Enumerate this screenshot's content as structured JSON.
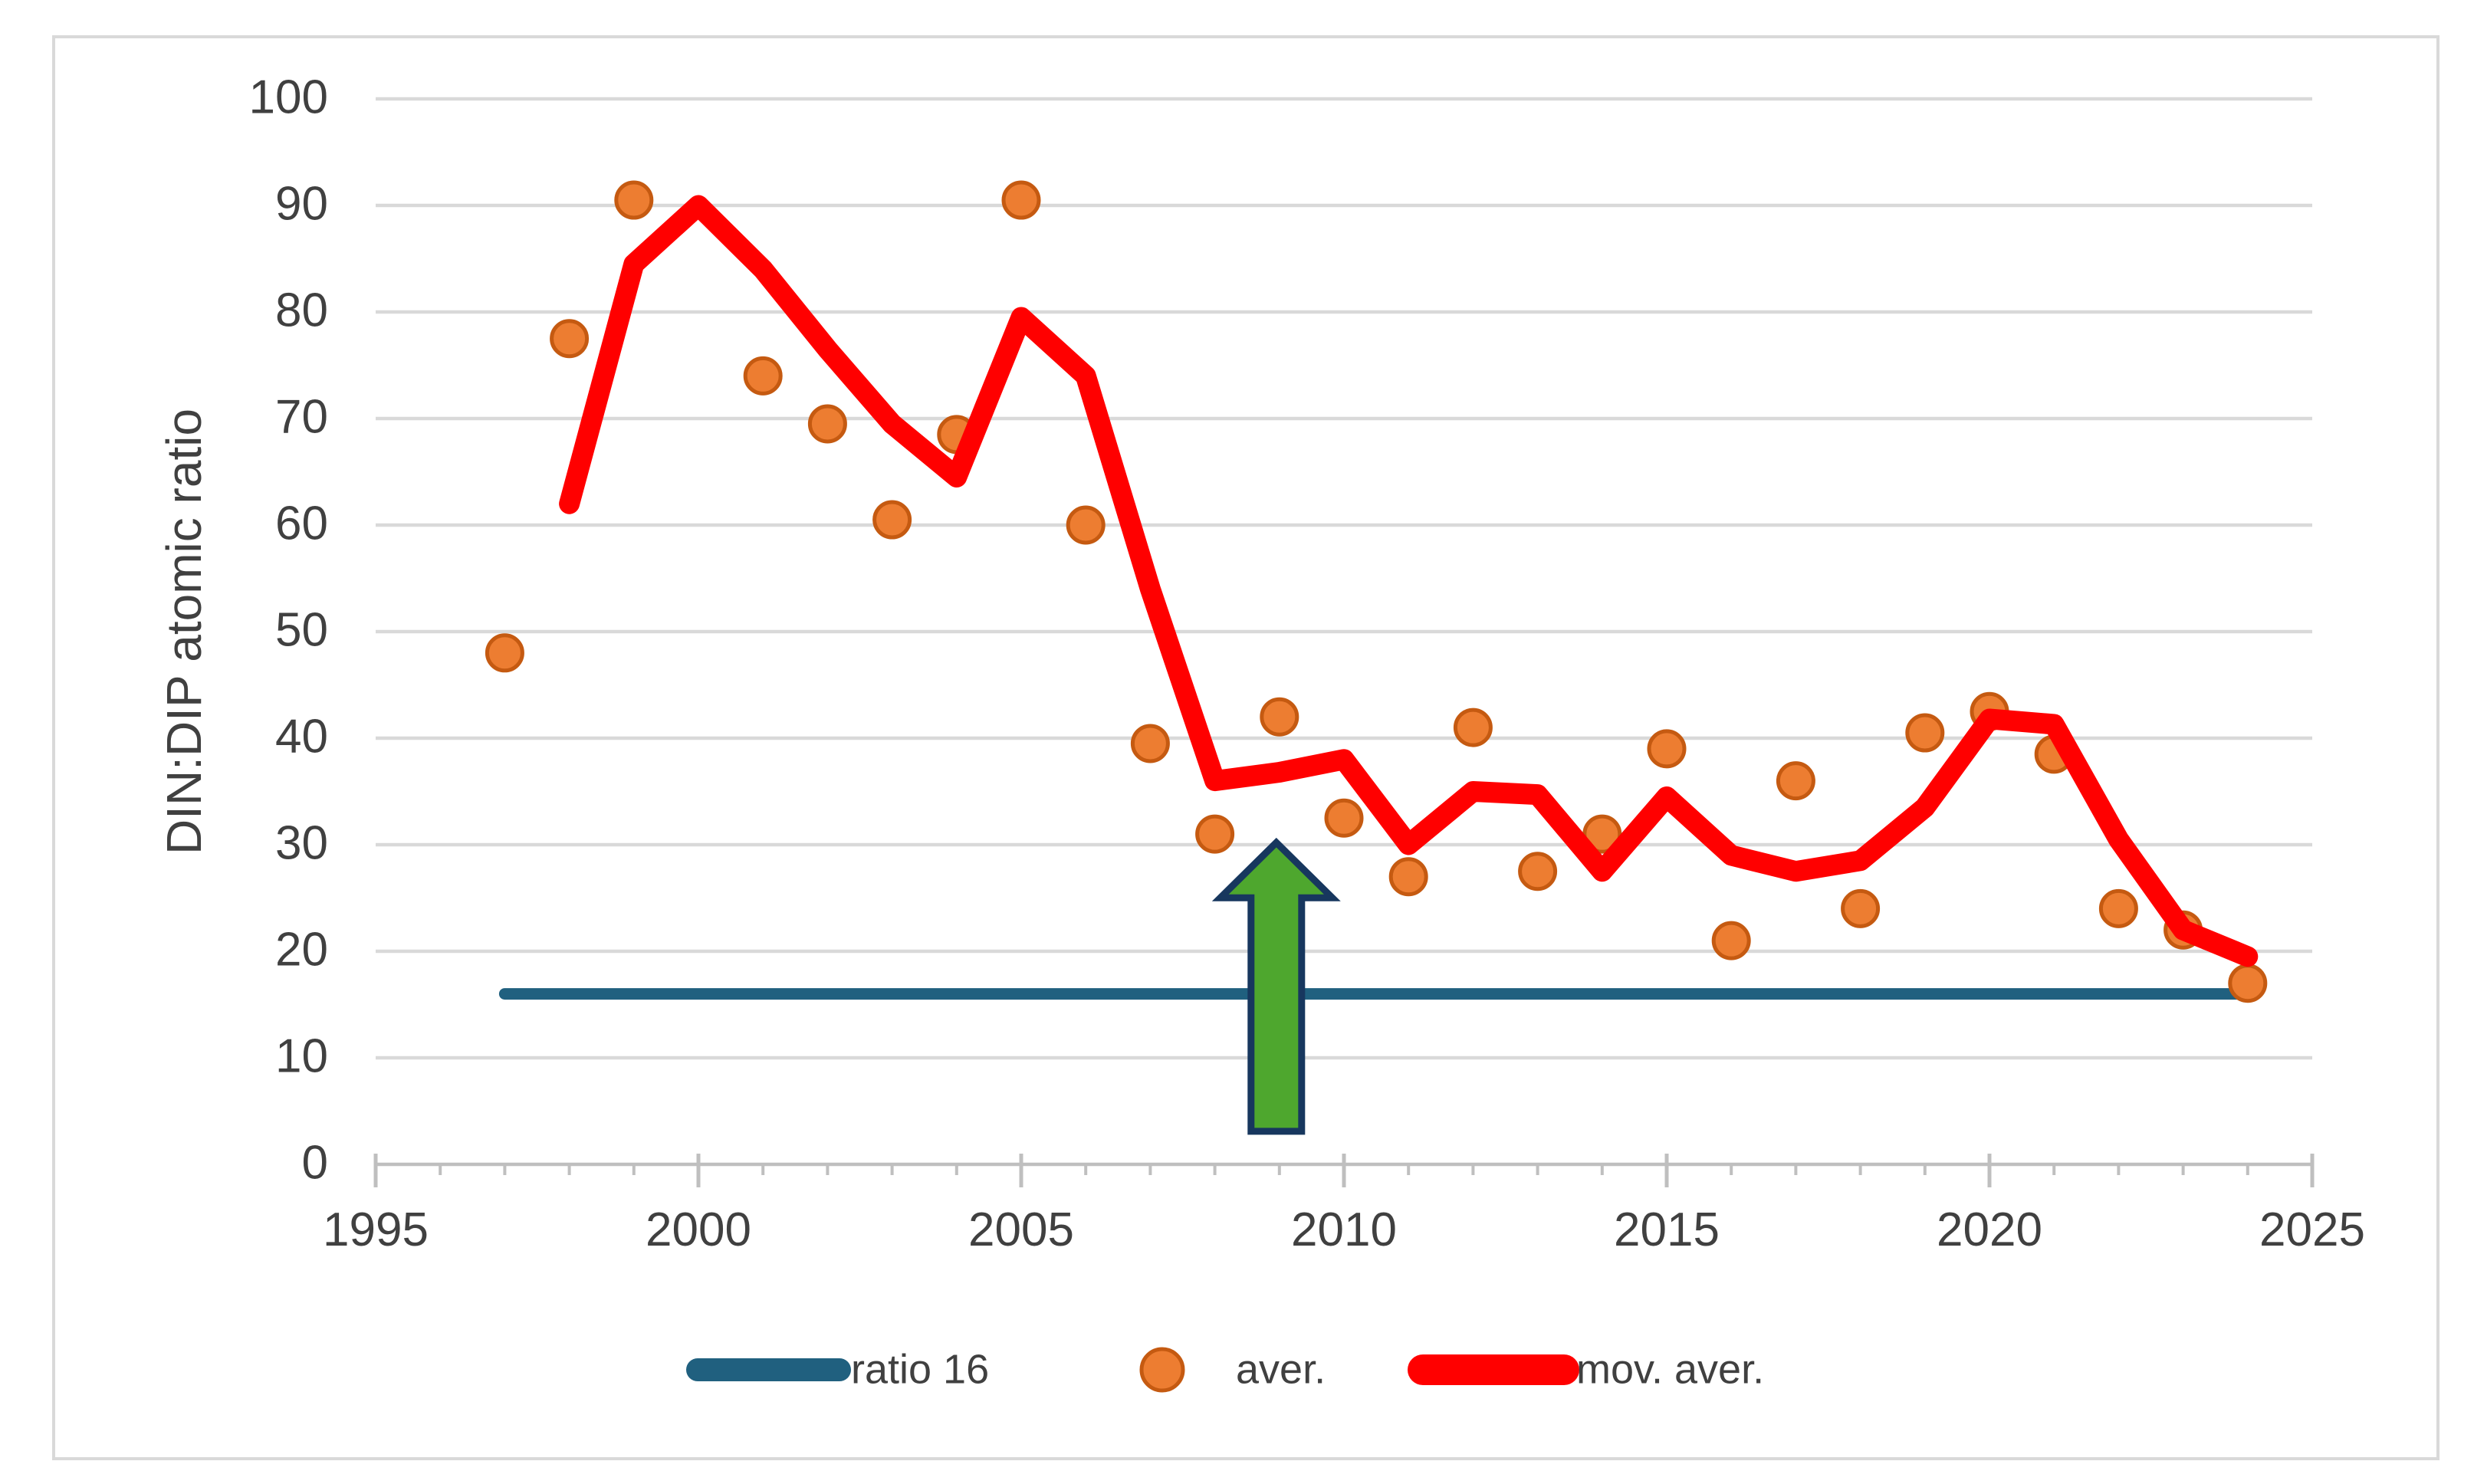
{
  "chart_data": {
    "type": "line+scatter",
    "title": "",
    "xlabel": "",
    "ylabel": "DIN:DIP atomic ratio",
    "xlim": [
      1995,
      2025
    ],
    "ylim": [
      0,
      100
    ],
    "x_major_ticks": [
      1995,
      2000,
      2005,
      2010,
      2015,
      2020,
      2025
    ],
    "y_ticks": [
      0,
      10,
      20,
      30,
      40,
      50,
      60,
      70,
      80,
      90,
      100
    ],
    "grid": "horizontal-major",
    "legend_position": "bottom-center",
    "series": [
      {
        "name": "ratio 16",
        "type": "line",
        "color": "#20607F",
        "line_width": 15,
        "points": [
          [
            1997,
            16
          ],
          [
            2024,
            16
          ]
        ]
      },
      {
        "name": "aver.",
        "type": "scatter",
        "color": "#ED7D31",
        "edge_color": "#C55A11",
        "marker_radius": 23,
        "points": [
          [
            1997,
            48
          ],
          [
            1998,
            77.5
          ],
          [
            1999,
            90.5
          ],
          [
            2001,
            74
          ],
          [
            2002,
            69.5
          ],
          [
            2003,
            60.5
          ],
          [
            2004,
            68.5
          ],
          [
            2005,
            90.5
          ],
          [
            2006,
            60
          ],
          [
            2007,
            39.5
          ],
          [
            2008,
            31
          ],
          [
            2009,
            42
          ],
          [
            2010,
            32.5
          ],
          [
            2011,
            27
          ],
          [
            2012,
            41
          ],
          [
            2013,
            27.5
          ],
          [
            2014,
            31
          ],
          [
            2015,
            39
          ],
          [
            2016,
            21
          ],
          [
            2017,
            36
          ],
          [
            2018,
            24
          ],
          [
            2019,
            40.5
          ],
          [
            2020,
            42.5
          ],
          [
            2021,
            38.5
          ],
          [
            2022,
            24
          ],
          [
            2023,
            22
          ],
          [
            2024,
            17
          ]
        ]
      },
      {
        "name": "mov. aver.",
        "type": "line",
        "color": "#FF0000",
        "line_width": 27,
        "points": [
          [
            1998,
            62
          ],
          [
            1999,
            84.5
          ],
          [
            2000,
            90
          ],
          [
            2001,
            84
          ],
          [
            2002,
            76.5
          ],
          [
            2003,
            69.5
          ],
          [
            2004,
            64.5
          ],
          [
            2005,
            79.5
          ],
          [
            2006,
            74
          ],
          [
            2007,
            54
          ],
          [
            2008,
            36
          ],
          [
            2009,
            36.8
          ],
          [
            2010,
            38
          ],
          [
            2011,
            30
          ],
          [
            2012,
            35
          ],
          [
            2013,
            34.7
          ],
          [
            2014,
            27.5
          ],
          [
            2015,
            34.5
          ],
          [
            2016,
            29
          ],
          [
            2017,
            27.5
          ],
          [
            2018,
            28.5
          ],
          [
            2019,
            33.5
          ],
          [
            2020,
            41.8
          ],
          [
            2021,
            41.3
          ],
          [
            2022,
            30.5
          ],
          [
            2023,
            22
          ],
          [
            2024,
            19.5
          ]
        ]
      }
    ],
    "annotations": [
      {
        "type": "up-arrow",
        "x": 2009,
        "value_from": 3.1,
        "value_to": 30.2,
        "fill_color": "#4EA72E",
        "outline_color": "#17375E"
      }
    ]
  },
  "styles": {
    "gridline_color": "#D9D9D9",
    "axis_line_color": "#BFBFBF",
    "tick_color": "#BFBFBF",
    "text_color": "#404040",
    "outer_border_color": "#D9D9D9",
    "background_color": "#FFFFFF"
  }
}
